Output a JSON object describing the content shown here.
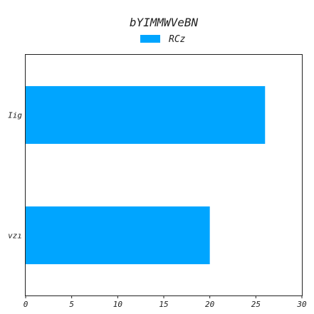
{
  "chart_data": {
    "type": "bar",
    "orientation": "horizontal",
    "title": "bYIMMWVeBN",
    "xlabel": "",
    "ylabel": "",
    "categories": [
      "Iig",
      "vzı"
    ],
    "series": [
      {
        "name": "RCz",
        "values": [
          26,
          20
        ],
        "color": "#00a5ff"
      }
    ],
    "xlim": [
      0,
      30
    ],
    "xticks": [
      0,
      5,
      10,
      15,
      20,
      25,
      30
    ],
    "grid": false,
    "legend_position": "top-center"
  }
}
